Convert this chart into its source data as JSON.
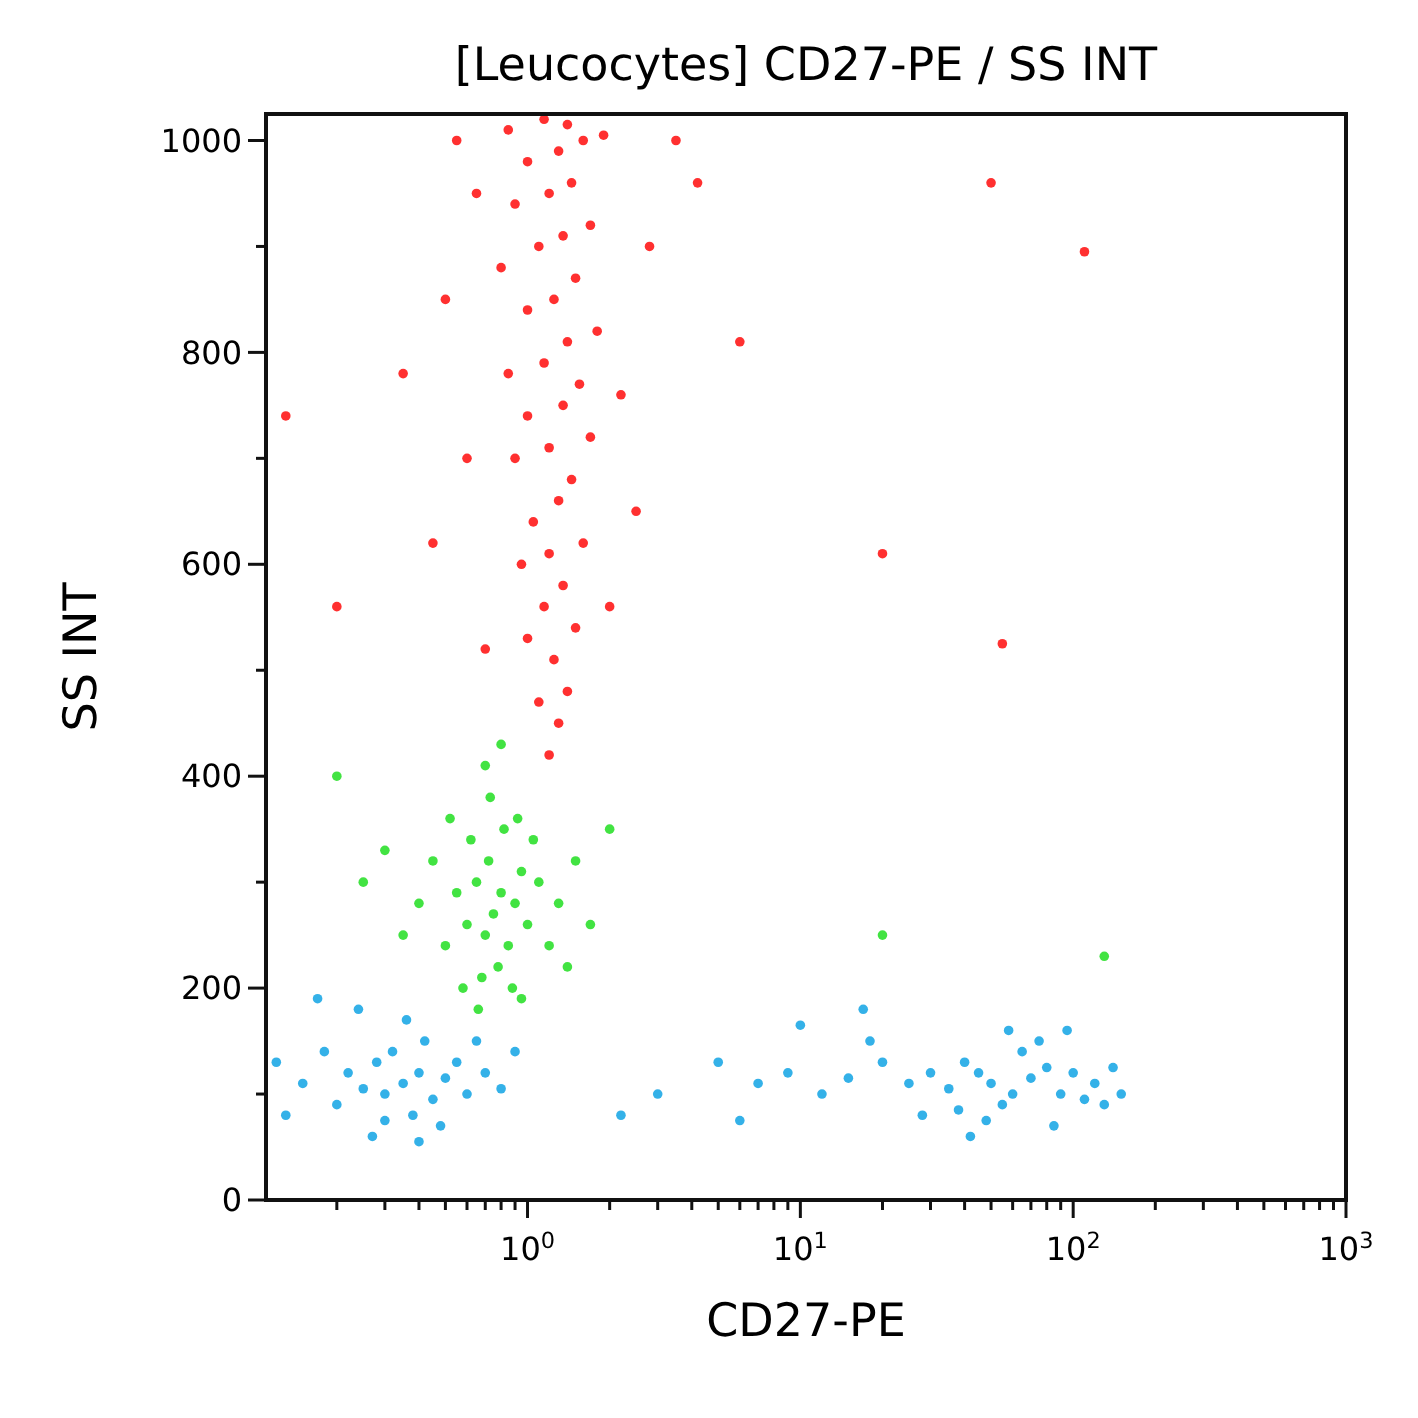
{
  "chart_data": {
    "type": "scatter",
    "title": "[Leucocytes] CD27-PE / SS INT",
    "xlabel": "CD27-PE",
    "ylabel": "SS INT",
    "log": "x",
    "grid": false,
    "marker": "circle",
    "xlim": [
      0.11,
      1000
    ],
    "ylim": [
      0,
      1025
    ],
    "xticks": [
      {
        "value": 0.2,
        "label": null
      },
      {
        "value": 0.3,
        "label": null
      },
      {
        "value": 0.4,
        "label": null
      },
      {
        "value": 0.5,
        "label": null
      },
      {
        "value": 0.6,
        "label": null
      },
      {
        "value": 0.7,
        "label": null
      },
      {
        "value": 0.8,
        "label": null
      },
      {
        "value": 0.9,
        "label": null
      },
      {
        "value": 1,
        "label": "10$^{0}$"
      },
      {
        "value": 2,
        "label": null
      },
      {
        "value": 3,
        "label": null
      },
      {
        "value": 4,
        "label": null
      },
      {
        "value": 5,
        "label": null
      },
      {
        "value": 6,
        "label": null
      },
      {
        "value": 7,
        "label": null
      },
      {
        "value": 8,
        "label": null
      },
      {
        "value": 9,
        "label": null
      },
      {
        "value": 10,
        "label": "10$^{1}$"
      },
      {
        "value": 20,
        "label": null
      },
      {
        "value": 30,
        "label": null
      },
      {
        "value": 40,
        "label": null
      },
      {
        "value": 50,
        "label": null
      },
      {
        "value": 60,
        "label": null
      },
      {
        "value": 70,
        "label": null
      },
      {
        "value": 80,
        "label": null
      },
      {
        "value": 90,
        "label": null
      },
      {
        "value": 100,
        "label": "10$^{2}$"
      },
      {
        "value": 200,
        "label": null
      },
      {
        "value": 300,
        "label": null
      },
      {
        "value": 400,
        "label": null
      },
      {
        "value": 500,
        "label": null
      },
      {
        "value": 600,
        "label": null
      },
      {
        "value": 700,
        "label": null
      },
      {
        "value": 800,
        "label": null
      },
      {
        "value": 900,
        "label": null
      },
      {
        "value": 1000,
        "label": "10$^{3}$"
      }
    ],
    "yticks": [
      0,
      {
        "value": 100,
        "label": null
      },
      200,
      {
        "value": 300,
        "label": null
      },
      400,
      {
        "value": 500,
        "label": null
      },
      600,
      {
        "value": 700,
        "label": null
      },
      800,
      {
        "value": 900,
        "label": null
      },
      1000
    ],
    "series": [
      {
        "color": "#ff1a1a",
        "x": [
          1.2,
          1.3,
          1.1,
          1.4,
          1.25,
          1.0,
          1.5,
          1.15,
          1.35,
          0.95,
          1.2,
          1.6,
          1.05,
          1.3,
          1.45,
          0.9,
          1.2,
          1.7,
          1.0,
          1.35,
          1.55,
          0.85,
          1.15,
          1.4,
          1.8,
          1.0,
          1.25,
          1.5,
          0.8,
          1.1,
          1.35,
          1.7,
          0.9,
          1.2,
          1.45,
          1.0,
          1.3,
          1.6,
          0.85,
          1.15,
          1.4,
          1.9,
          0.6,
          0.5,
          0.45,
          2.2,
          2.8,
          3.5,
          0.35,
          0.65,
          2.5,
          0.7,
          0.55,
          4.2,
          0.13,
          0.2,
          50,
          110,
          20,
          55,
          6,
          2.0
        ],
        "values": [
          420,
          450,
          470,
          480,
          510,
          530,
          540,
          560,
          580,
          600,
          610,
          620,
          640,
          660,
          680,
          700,
          710,
          720,
          740,
          750,
          770,
          780,
          790,
          810,
          820,
          840,
          850,
          870,
          880,
          900,
          910,
          920,
          940,
          950,
          960,
          980,
          990,
          1000,
          1010,
          1020,
          1015,
          1005,
          700,
          850,
          620,
          760,
          900,
          1000,
          780,
          950,
          650,
          520,
          1000,
          960,
          740,
          560,
          960,
          895,
          610,
          525,
          810,
          560
        ]
      },
      {
        "color": "#2ee02e",
        "x": [
          0.75,
          0.7,
          0.8,
          0.65,
          0.85,
          0.9,
          0.6,
          0.72,
          0.78,
          0.68,
          0.95,
          0.55,
          0.82,
          0.62,
          1.0,
          0.5,
          0.88,
          0.73,
          0.58,
          1.1,
          0.45,
          0.92,
          0.7,
          1.2,
          0.4,
          1.05,
          0.52,
          0.95,
          1.3,
          0.35,
          0.8,
          1.5,
          0.3,
          1.4,
          0.66,
          1.7,
          0.25,
          2.0,
          0.2,
          20,
          130
        ],
        "values": [
          270,
          250,
          290,
          300,
          240,
          280,
          260,
          320,
          220,
          210,
          310,
          290,
          350,
          340,
          260,
          240,
          200,
          380,
          200,
          300,
          320,
          360,
          410,
          240,
          280,
          340,
          360,
          190,
          280,
          250,
          430,
          320,
          330,
          220,
          180,
          260,
          300,
          350,
          400,
          250,
          230
        ]
      },
      {
        "color": "#1ea8e6",
        "x": [
          0.35,
          0.3,
          0.4,
          0.28,
          0.45,
          0.38,
          0.25,
          0.32,
          0.5,
          0.42,
          0.22,
          0.55,
          0.3,
          0.2,
          0.6,
          0.36,
          0.18,
          0.27,
          0.48,
          0.15,
          0.65,
          0.13,
          0.7,
          0.24,
          0.12,
          0.8,
          0.4,
          0.17,
          0.9,
          50,
          45,
          60,
          40,
          70,
          55,
          35,
          80,
          65,
          30,
          90,
          48,
          75,
          25,
          100,
          38,
          110,
          20,
          58,
          15,
          120,
          85,
          12,
          140,
          18,
          9,
          28,
          7,
          130,
          5,
          10,
          17,
          3,
          2.2,
          42,
          95,
          150,
          6
        ],
        "values": [
          110,
          100,
          120,
          130,
          95,
          80,
          105,
          140,
          115,
          150,
          120,
          130,
          75,
          90,
          100,
          170,
          140,
          60,
          70,
          110,
          150,
          80,
          120,
          180,
          130,
          105,
          55,
          190,
          140,
          110,
          120,
          100,
          130,
          115,
          90,
          105,
          125,
          140,
          120,
          100,
          75,
          150,
          110,
          120,
          85,
          95,
          130,
          160,
          115,
          110,
          70,
          100,
          125,
          150,
          120,
          80,
          110,
          90,
          130,
          165,
          180,
          100,
          80,
          60,
          160,
          100,
          75
        ]
      }
    ]
  }
}
